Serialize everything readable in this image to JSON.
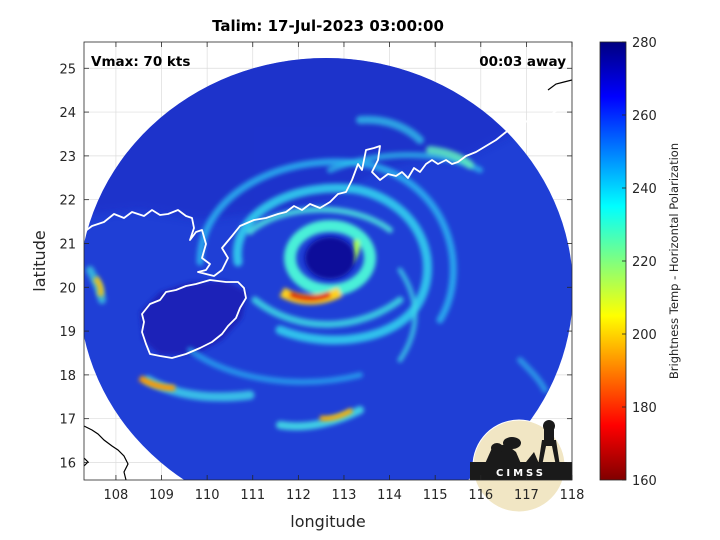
{
  "title": "Talim: 17-Jul-2023 03:00:00",
  "annotations": {
    "vmax": "Vmax: 70 kts",
    "time_offset": "00:03 away"
  },
  "axes": {
    "xlabel": "longitude",
    "ylabel": "latitude",
    "xlim": [
      107.3,
      118
    ],
    "ylim": [
      15.6,
      25.6
    ],
    "xticks": [
      108,
      109,
      110,
      111,
      112,
      113,
      114,
      115,
      116,
      117,
      118
    ],
    "yticks": [
      16,
      17,
      18,
      19,
      20,
      21,
      22,
      23,
      24,
      25
    ],
    "xtick_labels": [
      "108",
      "109",
      "110",
      "111",
      "112",
      "113",
      "114",
      "115",
      "116",
      "117",
      "118"
    ],
    "ytick_labels": [
      "16",
      "17",
      "18",
      "19",
      "20",
      "21",
      "22",
      "23",
      "24",
      "25"
    ],
    "grid": true
  },
  "colorbar": {
    "label": "Brightness Temp - Horizontal Polarization",
    "min": 160,
    "max": 280,
    "ticks": [
      160,
      180,
      200,
      220,
      240,
      260,
      280
    ],
    "tick_labels": [
      "160",
      "180",
      "200",
      "220",
      "240",
      "260",
      "280"
    ],
    "colormap": "jet"
  },
  "logo": {
    "text": "CIMSS"
  },
  "map_data": {
    "storm_name": "Talim",
    "swath_center": [
      112.6,
      20.4
    ],
    "swath_radius_deg": 5.3,
    "eye_center": [
      112.55,
      20.55
    ],
    "coastline_color": "#ffffff",
    "background_color": "#1f3fd6"
  }
}
